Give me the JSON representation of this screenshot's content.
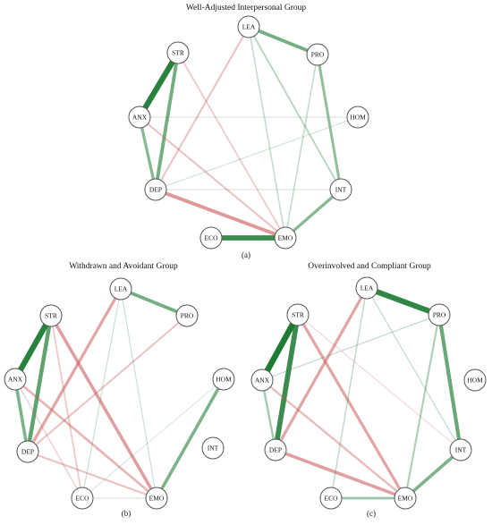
{
  "colors": {
    "positive": "#1e7b34",
    "negative": "#c9595a",
    "node_stroke": "#555555"
  },
  "panels": [
    {
      "key": "a",
      "title": "Well-Adjusted Interpersonal Group",
      "caption": "(a)",
      "nodes": [
        {
          "id": "LEA",
          "label": "LEA"
        },
        {
          "id": "PRO",
          "label": "PRO"
        },
        {
          "id": "STR",
          "label": "STR"
        },
        {
          "id": "ANX",
          "label": "ANX"
        },
        {
          "id": "HOM",
          "label": "HOM"
        },
        {
          "id": "DEP",
          "label": "DEP"
        },
        {
          "id": "INT",
          "label": "INT"
        },
        {
          "id": "ECO",
          "label": "ECO"
        },
        {
          "id": "EMO",
          "label": "EMO"
        }
      ],
      "edges": [
        {
          "source": "LEA",
          "target": "PRO",
          "weight": 0.55
        },
        {
          "source": "STR",
          "target": "ANX",
          "weight": 0.95
        },
        {
          "source": "STR",
          "target": "DEP",
          "weight": 0.55
        },
        {
          "source": "ANX",
          "target": "DEP",
          "weight": 0.45
        },
        {
          "source": "ECO",
          "target": "EMO",
          "weight": 0.85
        },
        {
          "source": "EMO",
          "target": "INT",
          "weight": 0.45
        },
        {
          "source": "PRO",
          "target": "INT",
          "weight": 0.4
        },
        {
          "source": "DEP",
          "target": "EMO",
          "weight": -0.55
        },
        {
          "source": "LEA",
          "target": "DEP",
          "weight": -0.25
        },
        {
          "source": "ANX",
          "target": "EMO",
          "weight": -0.25
        },
        {
          "source": "STR",
          "target": "EMO",
          "weight": -0.2
        },
        {
          "source": "LEA",
          "target": "INT",
          "weight": 0.2
        },
        {
          "source": "LEA",
          "target": "EMO",
          "weight": 0.15
        },
        {
          "source": "PRO",
          "target": "EMO",
          "weight": 0.15
        },
        {
          "source": "HOM",
          "target": "DEP",
          "weight": 0.08
        },
        {
          "source": "ANX",
          "target": "HOM",
          "weight": 0.06
        },
        {
          "source": "DEP",
          "target": "INT",
          "weight": 0.06
        }
      ]
    },
    {
      "key": "b",
      "title": "Withdrawn and Avoidant Group",
      "caption": "(b)",
      "nodes": [
        {
          "id": "LEA",
          "label": "LEA"
        },
        {
          "id": "PRO",
          "label": "PRO"
        },
        {
          "id": "STR",
          "label": "STR"
        },
        {
          "id": "ANX",
          "label": "ANX"
        },
        {
          "id": "HOM",
          "label": "HOM"
        },
        {
          "id": "INT",
          "label": "INT"
        },
        {
          "id": "DEP",
          "label": "DEP"
        },
        {
          "id": "ECO",
          "label": "ECO"
        },
        {
          "id": "EMO",
          "label": "EMO"
        }
      ],
      "edges": [
        {
          "source": "STR",
          "target": "ANX",
          "weight": 0.95
        },
        {
          "source": "STR",
          "target": "DEP",
          "weight": 0.65
        },
        {
          "source": "ANX",
          "target": "DEP",
          "weight": 0.5
        },
        {
          "source": "LEA",
          "target": "PRO",
          "weight": 0.55
        },
        {
          "source": "HOM",
          "target": "EMO",
          "weight": 0.5
        },
        {
          "source": "LEA",
          "target": "DEP",
          "weight": -0.45
        },
        {
          "source": "STR",
          "target": "EMO",
          "weight": -0.5
        },
        {
          "source": "ANX",
          "target": "EMO",
          "weight": -0.35
        },
        {
          "source": "PRO",
          "target": "DEP",
          "weight": -0.25
        },
        {
          "source": "DEP",
          "target": "EMO",
          "weight": -0.25
        },
        {
          "source": "STR",
          "target": "ECO",
          "weight": -0.2
        },
        {
          "source": "ANX",
          "target": "ECO",
          "weight": -0.15
        },
        {
          "source": "LEA",
          "target": "ECO",
          "weight": 0.1
        },
        {
          "source": "LEA",
          "target": "EMO",
          "weight": 0.1
        },
        {
          "source": "ECO",
          "target": "EMO",
          "weight": 0.08
        },
        {
          "source": "HOM",
          "target": "ECO",
          "weight": 0.06
        }
      ]
    },
    {
      "key": "c",
      "title": "Overinvolved and Compliant Group",
      "caption": "(c)",
      "nodes": [
        {
          "id": "LEA",
          "label": "LEA"
        },
        {
          "id": "PRO",
          "label": "PRO"
        },
        {
          "id": "STR",
          "label": "STR"
        },
        {
          "id": "ANX",
          "label": "ANX"
        },
        {
          "id": "HOM",
          "label": "HOM"
        },
        {
          "id": "DEP",
          "label": "DEP"
        },
        {
          "id": "INT",
          "label": "INT"
        },
        {
          "id": "ECO",
          "label": "ECO"
        },
        {
          "id": "EMO",
          "label": "EMO"
        }
      ],
      "edges": [
        {
          "source": "STR",
          "target": "ANX",
          "weight": 1.0
        },
        {
          "source": "STR",
          "target": "DEP",
          "weight": 0.85
        },
        {
          "source": "LEA",
          "target": "PRO",
          "weight": 0.9
        },
        {
          "source": "PRO",
          "target": "INT",
          "weight": 0.6
        },
        {
          "source": "EMO",
          "target": "INT",
          "weight": 0.5
        },
        {
          "source": "ANX",
          "target": "DEP",
          "weight": 0.3
        },
        {
          "source": "ECO",
          "target": "EMO",
          "weight": 0.35
        },
        {
          "source": "LEA",
          "target": "DEP",
          "weight": -0.45
        },
        {
          "source": "DEP",
          "target": "EMO",
          "weight": -0.5
        },
        {
          "source": "STR",
          "target": "EMO",
          "weight": -0.45
        },
        {
          "source": "ANX",
          "target": "EMO",
          "weight": -0.3
        },
        {
          "source": "EMO",
          "target": "PRO",
          "weight": 0.25
        },
        {
          "source": "ANX",
          "target": "PRO",
          "weight": 0.12
        },
        {
          "source": "LEA",
          "target": "ECO",
          "weight": 0.15
        },
        {
          "source": "LEA",
          "target": "INT",
          "weight": 0.12
        },
        {
          "source": "STR",
          "target": "INT",
          "weight": -0.1
        }
      ]
    }
  ]
}
